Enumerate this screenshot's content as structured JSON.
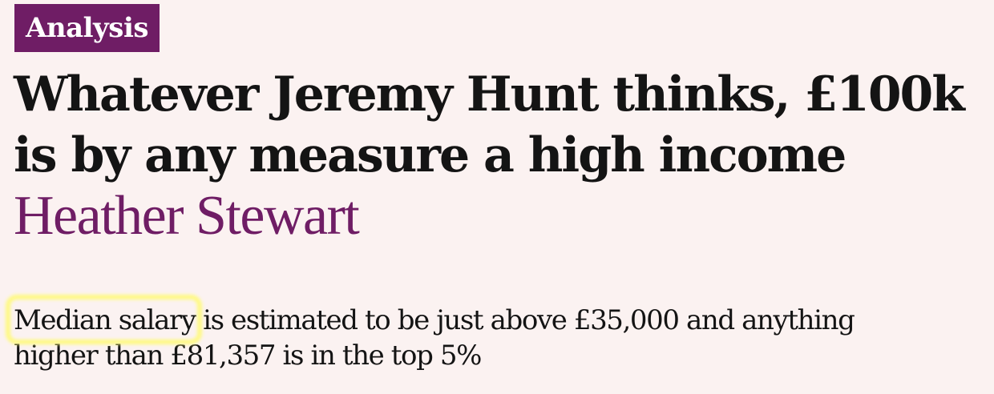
{
  "article": {
    "kicker": "Analysis",
    "headline": "Whatever Jeremy Hunt thinks, £100k is by any measure a high income",
    "byline": "Heather Stewart",
    "standfirst": {
      "highlighted": "Median salary",
      "rest": " is estimated to be just above £35,000 and anything higher than £81,357 is in the top 5%"
    }
  },
  "colors": {
    "background": "#fbf2f1",
    "accent": "#6f1d65",
    "text": "#141414",
    "highlight": "#fffa7a"
  }
}
